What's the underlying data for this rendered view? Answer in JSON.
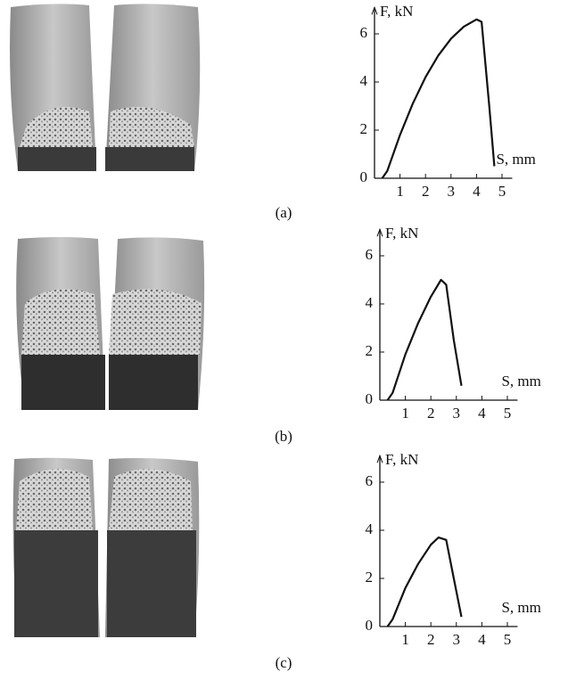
{
  "chart_data": [
    {
      "type": "line",
      "panel_label": "(a)",
      "y_label": "F, kN",
      "x_label": "S, mm",
      "color": "#111111",
      "x": [
        0.3,
        0.5,
        1,
        1.5,
        2,
        2.5,
        3,
        3.5,
        4,
        4.2,
        4.5,
        4.7
      ],
      "values": [
        0,
        0.3,
        1.8,
        3.1,
        4.2,
        5.1,
        5.8,
        6.3,
        6.6,
        6.5,
        3,
        0.5
      ],
      "xlim": [
        0,
        5.4
      ],
      "ylim": [
        0,
        7.1
      ],
      "xticks": [
        1,
        2,
        3,
        4,
        5
      ],
      "yticks": [
        0,
        2,
        4,
        6
      ]
    },
    {
      "type": "line",
      "panel_label": "(b)",
      "y_label": "F, kN",
      "x_label": "S, mm",
      "color": "#111111",
      "x": [
        0.3,
        0.5,
        1,
        1.5,
        2,
        2.4,
        2.6,
        2.9,
        3.2
      ],
      "values": [
        0,
        0.3,
        1.9,
        3.2,
        4.3,
        5.0,
        4.8,
        2.5,
        0.6
      ],
      "xlim": [
        0,
        5.4
      ],
      "ylim": [
        0,
        7.1
      ],
      "xticks": [
        1,
        2,
        3,
        4,
        5
      ],
      "yticks": [
        0,
        2,
        4,
        6
      ]
    },
    {
      "type": "line",
      "panel_label": "(c)",
      "y_label": "F, kN",
      "x_label": "S, mm",
      "color": "#111111",
      "x": [
        0.3,
        0.5,
        1,
        1.5,
        2,
        2.3,
        2.6,
        2.9,
        3.2
      ],
      "values": [
        0,
        0.3,
        1.6,
        2.6,
        3.4,
        3.7,
        3.6,
        2,
        0.4
      ],
      "xlim": [
        0,
        5.4
      ],
      "ylim": [
        0,
        7.1
      ],
      "xticks": [
        1,
        2,
        3,
        4,
        5
      ],
      "yticks": [
        0,
        2,
        4,
        6
      ]
    }
  ]
}
